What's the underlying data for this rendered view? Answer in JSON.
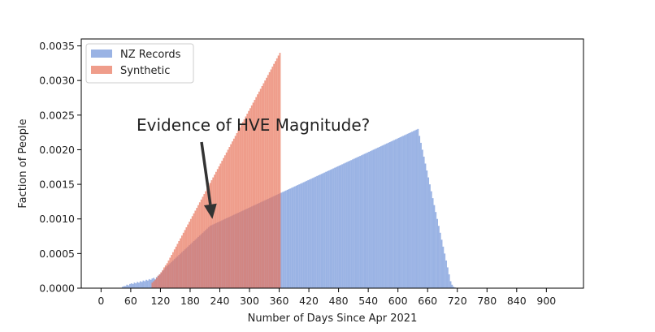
{
  "chart_data": {
    "type": "bar",
    "subtype": "overlaid-histogram",
    "title": "",
    "xlabel": "Number of Days Since Apr 2021",
    "ylabel": "Faction of People",
    "xlim": [
      -40,
      975
    ],
    "ylim": [
      0,
      0.0036
    ],
    "xticks": [
      0,
      60,
      120,
      180,
      240,
      300,
      360,
      420,
      480,
      540,
      600,
      660,
      720,
      780,
      840,
      900
    ],
    "yticks": [
      0.0,
      0.0005,
      0.001,
      0.0015,
      0.002,
      0.0025,
      0.003,
      0.0035
    ],
    "ytick_labels": [
      "0.0000",
      "0.0005",
      "0.0010",
      "0.0015",
      "0.0020",
      "0.0025",
      "0.0030",
      "0.0035"
    ],
    "grid": false,
    "legend_position": "top-left",
    "bin_width_days": 3,
    "series": [
      {
        "name": "NZ Records",
        "color": "#6f93d8",
        "opacity": 0.7,
        "x_start": 42,
        "values": [
          2e-05,
          3e-05,
          3e-05,
          5e-05,
          4e-05,
          6e-05,
          7e-05,
          6e-05,
          8e-05,
          7e-05,
          9e-05,
          8e-05,
          0.0001,
          9e-05,
          0.00011,
          0.0001,
          0.00012,
          0.00011,
          0.00013,
          0.00012,
          0.00014,
          0.00015,
          0.00013,
          0.00016,
          0.00018,
          0.0002,
          0.00022,
          0.00025,
          0.00027,
          0.0003,
          0.00032,
          0.00034,
          0.00036,
          0.00038,
          0.0004,
          0.00042,
          0.00044,
          0.00046,
          0.00048,
          0.0005,
          0.00052,
          0.00054,
          0.00056,
          0.00058,
          0.0006,
          0.00062,
          0.00064,
          0.00066,
          0.00068,
          0.0007,
          0.00072,
          0.00074,
          0.00076,
          0.00078,
          0.0008,
          0.00082,
          0.00084,
          0.00086,
          0.00088,
          0.0009,
          0.00091,
          0.00092,
          0.00093,
          0.00094,
          0.00095,
          0.00096,
          0.00097,
          0.00098,
          0.00099,
          0.001,
          0.00101,
          0.00102,
          0.00103,
          0.00104,
          0.00105,
          0.00106,
          0.00107,
          0.00108,
          0.00109,
          0.0011,
          0.00111,
          0.00112,
          0.00113,
          0.00114,
          0.00115,
          0.00116,
          0.00117,
          0.00118,
          0.00119,
          0.0012,
          0.00121,
          0.00122,
          0.00123,
          0.00124,
          0.00125,
          0.00126,
          0.00127,
          0.00128,
          0.00129,
          0.0013,
          0.00131,
          0.00132,
          0.00133,
          0.00134,
          0.00135,
          0.00136,
          0.00137,
          0.00138,
          0.00139,
          0.0014,
          0.00141,
          0.00142,
          0.00143,
          0.00144,
          0.00145,
          0.00146,
          0.00147,
          0.00148,
          0.00149,
          0.0015,
          0.00151,
          0.00152,
          0.00153,
          0.00154,
          0.00155,
          0.00156,
          0.00157,
          0.00158,
          0.00159,
          0.0016,
          0.00161,
          0.00162,
          0.00163,
          0.00164,
          0.00165,
          0.00166,
          0.00167,
          0.00168,
          0.00169,
          0.0017,
          0.00171,
          0.00172,
          0.00173,
          0.00174,
          0.00175,
          0.00176,
          0.00177,
          0.00178,
          0.00179,
          0.0018,
          0.00181,
          0.00182,
          0.00183,
          0.00184,
          0.00185,
          0.00186,
          0.00187,
          0.00188,
          0.00189,
          0.0019,
          0.00191,
          0.00192,
          0.00193,
          0.00194,
          0.00195,
          0.00196,
          0.00197,
          0.00198,
          0.00199,
          0.002,
          0.00201,
          0.00202,
          0.00203,
          0.00204,
          0.00205,
          0.00206,
          0.00207,
          0.00208,
          0.00209,
          0.0021,
          0.00211,
          0.00212,
          0.00213,
          0.00214,
          0.00215,
          0.00216,
          0.00217,
          0.00218,
          0.00219,
          0.0022,
          0.00221,
          0.00222,
          0.00223,
          0.00224,
          0.00225,
          0.00226,
          0.00227,
          0.00228,
          0.00229,
          0.0023,
          0.0022,
          0.0021,
          0.002,
          0.0019,
          0.0018,
          0.0017,
          0.0016,
          0.0015,
          0.0014,
          0.0013,
          0.0012,
          0.0011,
          0.001,
          0.0009,
          0.0008,
          0.0007,
          0.0006,
          0.0005,
          0.0004,
          0.0003,
          0.0002,
          0.0001,
          5e-05,
          2e-05,
          1e-05,
          0.0,
          0.0,
          0.0,
          0.0,
          0.0,
          0.0,
          0.0,
          0.0,
          0.0,
          0.0,
          0.0,
          0.0,
          0.0,
          0.0,
          0.0,
          0.0,
          0.0,
          0.0,
          0.0,
          0.0,
          0.0,
          0.0,
          0.0,
          0.0,
          0.0,
          0.0,
          0.0,
          0.0,
          0.0,
          0.0,
          0.0,
          0.0,
          0.0,
          0.0,
          0.0,
          0.0,
          0.0,
          0.0,
          0.0,
          0.0,
          0.0,
          0.0,
          0.0,
          0.0,
          0.0,
          0.0,
          0.0,
          0.0,
          0.0,
          0.0,
          0.0,
          0.0,
          0.0,
          0.0,
          0.0,
          0.0,
          0.0,
          0.0,
          0.0,
          0.0,
          0.0
        ]
      },
      {
        "name": "Synthetic",
        "color": "#e8735a",
        "opacity": 0.7,
        "x_start": 102,
        "values": [
          8e-05,
          0.0001,
          0.00012,
          0.00015,
          0.00018,
          0.0002,
          0.00023,
          0.00026,
          0.0003,
          0.00033,
          0.00036,
          0.0004,
          0.00044,
          0.00048,
          0.00052,
          0.00056,
          0.0006,
          0.00064,
          0.00068,
          0.00072,
          0.00076,
          0.0008,
          0.00084,
          0.00088,
          0.00092,
          0.00096,
          0.001,
          0.00104,
          0.00108,
          0.00112,
          0.00116,
          0.0012,
          0.00124,
          0.00128,
          0.00132,
          0.00136,
          0.0014,
          0.00144,
          0.00148,
          0.00152,
          0.00156,
          0.0016,
          0.00164,
          0.00168,
          0.00172,
          0.00176,
          0.0018,
          0.00184,
          0.00188,
          0.00192,
          0.00196,
          0.002,
          0.00204,
          0.00208,
          0.00212,
          0.00216,
          0.0022,
          0.00224,
          0.00228,
          0.00232,
          0.00236,
          0.0024,
          0.00244,
          0.00248,
          0.00252,
          0.00256,
          0.0026,
          0.00264,
          0.00268,
          0.00272,
          0.00276,
          0.0028,
          0.00284,
          0.00288,
          0.00292,
          0.00296,
          0.003,
          0.00304,
          0.00308,
          0.00312,
          0.00316,
          0.0032,
          0.00324,
          0.00328,
          0.00332,
          0.00336,
          0.0034
        ]
      }
    ],
    "annotation": {
      "text": "Evidence of HVE Magnitude?",
      "arrow": true,
      "points_to_x": 225,
      "points_to_y": 0.001
    }
  }
}
